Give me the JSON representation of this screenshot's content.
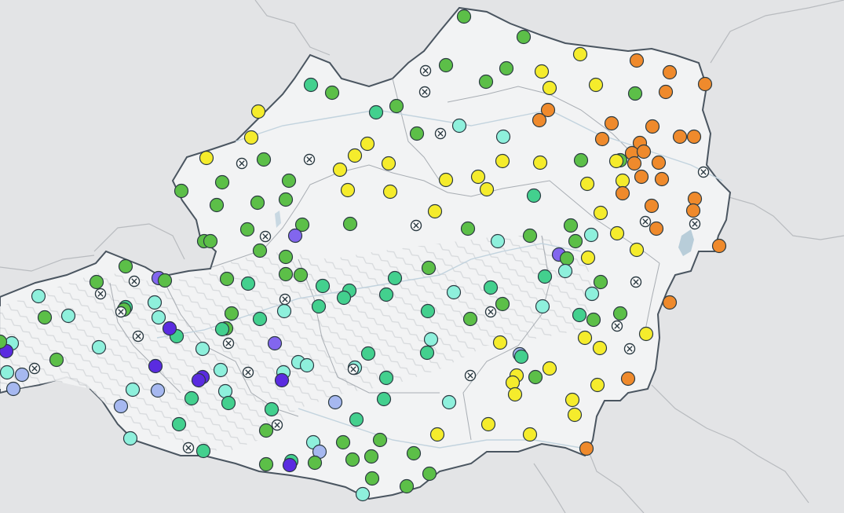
{
  "map": {
    "colors": {
      "background": "#e3e4e6",
      "land": "#f2f3f4",
      "land_relief": "#d9dbde",
      "border": "#4a5560",
      "region_border": "#a8adb3",
      "neighbor_border": "#b8bbbf",
      "water": "#b8cdd9"
    },
    "legend_colors": {
      "orange": "#ef8a2c",
      "yellow": "#f5ec2c",
      "green": "#5cbf48",
      "mint": "#43d08e",
      "aqua": "#8ef0dc",
      "lightblue": "#a6b8f0",
      "violet": "#8266ee",
      "purple": "#5a2be0",
      "missing": "#ffffff"
    },
    "station_icons": {
      "measurement": "filled-circle",
      "missing": "crossed-circle-icon"
    }
  }
}
